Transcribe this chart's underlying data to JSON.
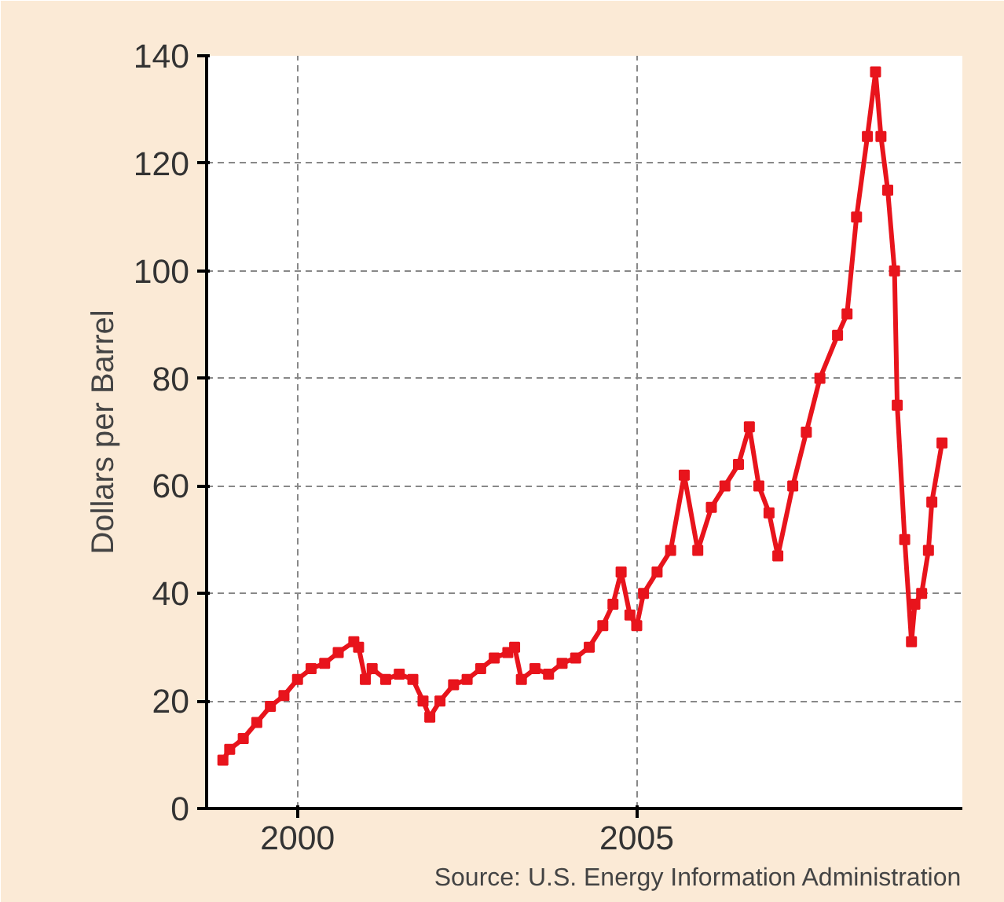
{
  "chart_data": {
    "type": "line",
    "ylabel": "Dollars per Barrel",
    "annotations": [
      "Source: U.S. Energy Information Administration"
    ],
    "xlim": [
      1998.66,
      2009.8
    ],
    "xticks": [
      2000,
      2005
    ],
    "ylim": [
      0,
      140
    ],
    "yticks": [
      0,
      20,
      40,
      60,
      80,
      100,
      120,
      140
    ],
    "grid": true,
    "marker": "square",
    "series": [
      {
        "color": "#e8141c",
        "x": [
          1998.9,
          1999.0,
          1999.2,
          1999.4,
          1999.6,
          1999.8,
          2000.0,
          2000.2,
          2000.4,
          2000.6,
          2000.83,
          2000.9,
          2001.0,
          2001.1,
          2001.3,
          2001.5,
          2001.7,
          2001.85,
          2001.95,
          2002.1,
          2002.3,
          2002.5,
          2002.7,
          2002.9,
          2003.1,
          2003.2,
          2003.3,
          2003.5,
          2003.7,
          2003.9,
          2004.1,
          2004.3,
          2004.5,
          2004.65,
          2004.77,
          2004.9,
          2005.0,
          2005.1,
          2005.3,
          2005.5,
          2005.7,
          2005.9,
          2006.1,
          2006.3,
          2006.5,
          2006.66,
          2006.8,
          2006.95,
          2007.08,
          2007.3,
          2007.5,
          2007.7,
          2007.96,
          2008.1,
          2008.24,
          2008.4,
          2008.52,
          2008.6,
          2008.7,
          2008.8,
          2008.84,
          2008.95,
          2009.05,
          2009.1,
          2009.2,
          2009.3,
          2009.35,
          2009.5
        ],
        "values": [
          9,
          11,
          13,
          16,
          19,
          21,
          24,
          26,
          27,
          29,
          31,
          30,
          24,
          26,
          24,
          25,
          24,
          20,
          17,
          20,
          23,
          24,
          26,
          28,
          29,
          30,
          24,
          26,
          25,
          27,
          28,
          30,
          34,
          38,
          44,
          36,
          34,
          40,
          44,
          48,
          62,
          48,
          56,
          60,
          64,
          71,
          60,
          55,
          47,
          60,
          70,
          80,
          88,
          92,
          110,
          125,
          137,
          125,
          115,
          100,
          75,
          50,
          31,
          38,
          40,
          48,
          57,
          68
        ]
      }
    ]
  }
}
